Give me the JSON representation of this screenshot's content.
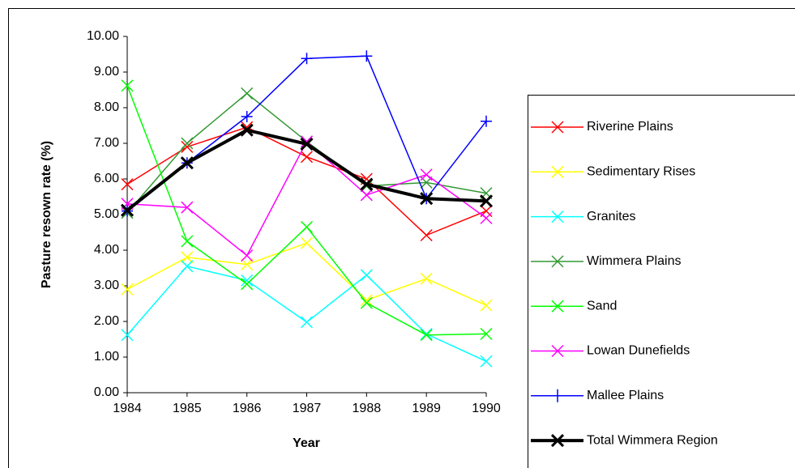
{
  "chart_data": {
    "type": "line",
    "x_label": "Year",
    "y_label": "Pasture resown rate (%)",
    "categories": [
      "1984",
      "1985",
      "1986",
      "1987",
      "1988",
      "1989",
      "1990"
    ],
    "ylim": [
      0,
      10
    ],
    "yticks": [
      {
        "value": 0,
        "label": "0.00"
      },
      {
        "value": 1,
        "label": "1.00"
      },
      {
        "value": 2,
        "label": "2.00"
      },
      {
        "value": 3,
        "label": "3.00"
      },
      {
        "value": 4,
        "label": "4.00"
      },
      {
        "value": 5,
        "label": "5.00"
      },
      {
        "value": 6,
        "label": "6.00"
      },
      {
        "value": 7,
        "label": "7.00"
      },
      {
        "value": 8,
        "label": "8.00"
      },
      {
        "value": 9,
        "label": "9.00"
      },
      {
        "value": 10,
        "label": "10.00"
      }
    ],
    "legend": "right",
    "series": [
      {
        "name": "Riverine Plains",
        "color": "#ff0000",
        "marker": "x",
        "width": 1.5,
        "values": [
          5.85,
          6.9,
          7.45,
          6.62,
          6.0,
          4.42,
          5.1
        ]
      },
      {
        "name": "Sedimentary Rises",
        "color": "#ffff00",
        "marker": "x",
        "width": 1.5,
        "values": [
          2.9,
          3.8,
          3.6,
          4.2,
          2.6,
          3.2,
          2.45
        ]
      },
      {
        "name": "Granites",
        "color": "#00ffff",
        "marker": "x",
        "width": 1.5,
        "values": [
          1.62,
          3.55,
          3.15,
          1.98,
          3.3,
          1.65,
          0.88
        ]
      },
      {
        "name": "Wimmera Plains",
        "color": "#339933",
        "marker": "x",
        "width": 1.5,
        "values": [
          5.05,
          7.0,
          8.4,
          7.05,
          5.8,
          5.9,
          5.6
        ]
      },
      {
        "name": "Sand",
        "color": "#00ff00",
        "marker": "x",
        "width": 1.5,
        "values": [
          8.62,
          4.25,
          3.05,
          4.65,
          2.52,
          1.62,
          1.65
        ]
      },
      {
        "name": "Lowan Dunefields",
        "color": "#ff00ff",
        "marker": "x",
        "width": 1.5,
        "values": [
          5.3,
          5.2,
          3.85,
          7.05,
          5.55,
          6.12,
          4.9
        ]
      },
      {
        "name": "Mallee Plains",
        "color": "#0000ff",
        "marker": "plus",
        "width": 1.5,
        "values": [
          5.1,
          6.45,
          7.75,
          9.38,
          9.45,
          5.45,
          7.62
        ]
      },
      {
        "name": "Total Wimmera Region",
        "color": "#000000",
        "marker": "x",
        "width": 4,
        "values": [
          5.12,
          6.45,
          7.37,
          6.98,
          5.85,
          5.45,
          5.38
        ]
      }
    ]
  }
}
